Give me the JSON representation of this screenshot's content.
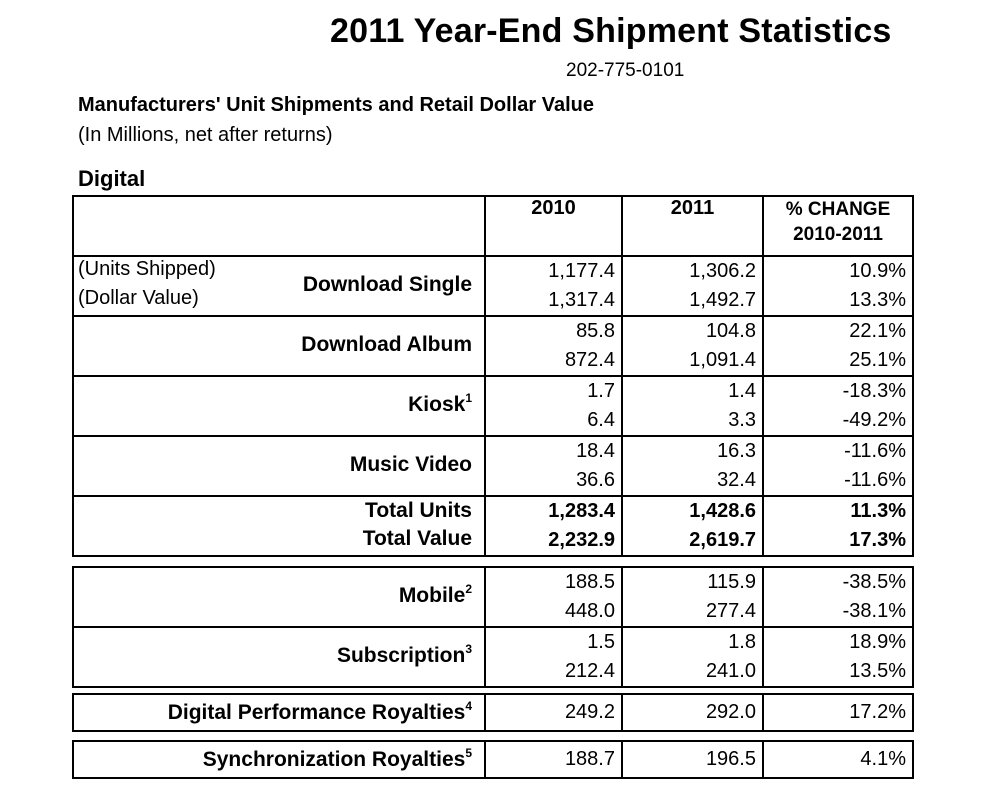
{
  "title": "2011 Year-End Shipment Statistics",
  "phone": "202-775-0101",
  "heading": "Manufacturers' Unit Shipments and Retail Dollar Value",
  "subheading": "(In Millions, net after returns)",
  "section": "Digital",
  "columns": {
    "c2010": "2010",
    "c2011": "2011",
    "change_line1": "% CHANGE",
    "change_line2": "2010-2011"
  },
  "labels": {
    "units_shipped": "(Units Shipped)",
    "dollar_value": "(Dollar Value)"
  },
  "rows": {
    "download_single": {
      "name": "Download Single",
      "units": {
        "y2010": "1,177.4",
        "y2011": "1,306.2",
        "change": "10.9%"
      },
      "value": {
        "y2010": "1,317.4",
        "y2011": "1,492.7",
        "change": "13.3%"
      }
    },
    "download_album": {
      "name": "Download Album",
      "units": {
        "y2010": "85.8",
        "y2011": "104.8",
        "change": "22.1%"
      },
      "value": {
        "y2010": "872.4",
        "y2011": "1,091.4",
        "change": "25.1%"
      }
    },
    "kiosk": {
      "name": "Kiosk",
      "note": "1",
      "units": {
        "y2010": "1.7",
        "y2011": "1.4",
        "change": "-18.3%"
      },
      "value": {
        "y2010": "6.4",
        "y2011": "3.3",
        "change": "-49.2%"
      }
    },
    "music_video": {
      "name": "Music Video",
      "units": {
        "y2010": "18.4",
        "y2011": "16.3",
        "change": "-11.6%"
      },
      "value": {
        "y2010": "36.6",
        "y2011": "32.4",
        "change": "-11.6%"
      }
    },
    "totals": {
      "units_name": "Total Units",
      "value_name": "Total Value",
      "units": {
        "y2010": "1,283.4",
        "y2011": "1,428.6",
        "change": "11.3%"
      },
      "value": {
        "y2010": "2,232.9",
        "y2011": "2,619.7",
        "change": "17.3%"
      }
    },
    "mobile": {
      "name": "Mobile",
      "note": "2",
      "units": {
        "y2010": "188.5",
        "y2011": "115.9",
        "change": "-38.5%"
      },
      "value": {
        "y2010": "448.0",
        "y2011": "277.4",
        "change": "-38.1%"
      }
    },
    "subscription": {
      "name": "Subscription",
      "note": "3",
      "units": {
        "y2010": "1.5",
        "y2011": "1.8",
        "change": "18.9%"
      },
      "value": {
        "y2010": "212.4",
        "y2011": "241.0",
        "change": "13.5%"
      }
    },
    "digital_performance": {
      "name": "Digital Performance Royalties",
      "note": "4",
      "value": {
        "y2010": "249.2",
        "y2011": "292.0",
        "change": "17.2%"
      }
    },
    "synchronization": {
      "name": "Synchronization Royalties",
      "note": "5",
      "value": {
        "y2010": "188.7",
        "y2011": "196.5",
        "change": "4.1%"
      }
    }
  }
}
